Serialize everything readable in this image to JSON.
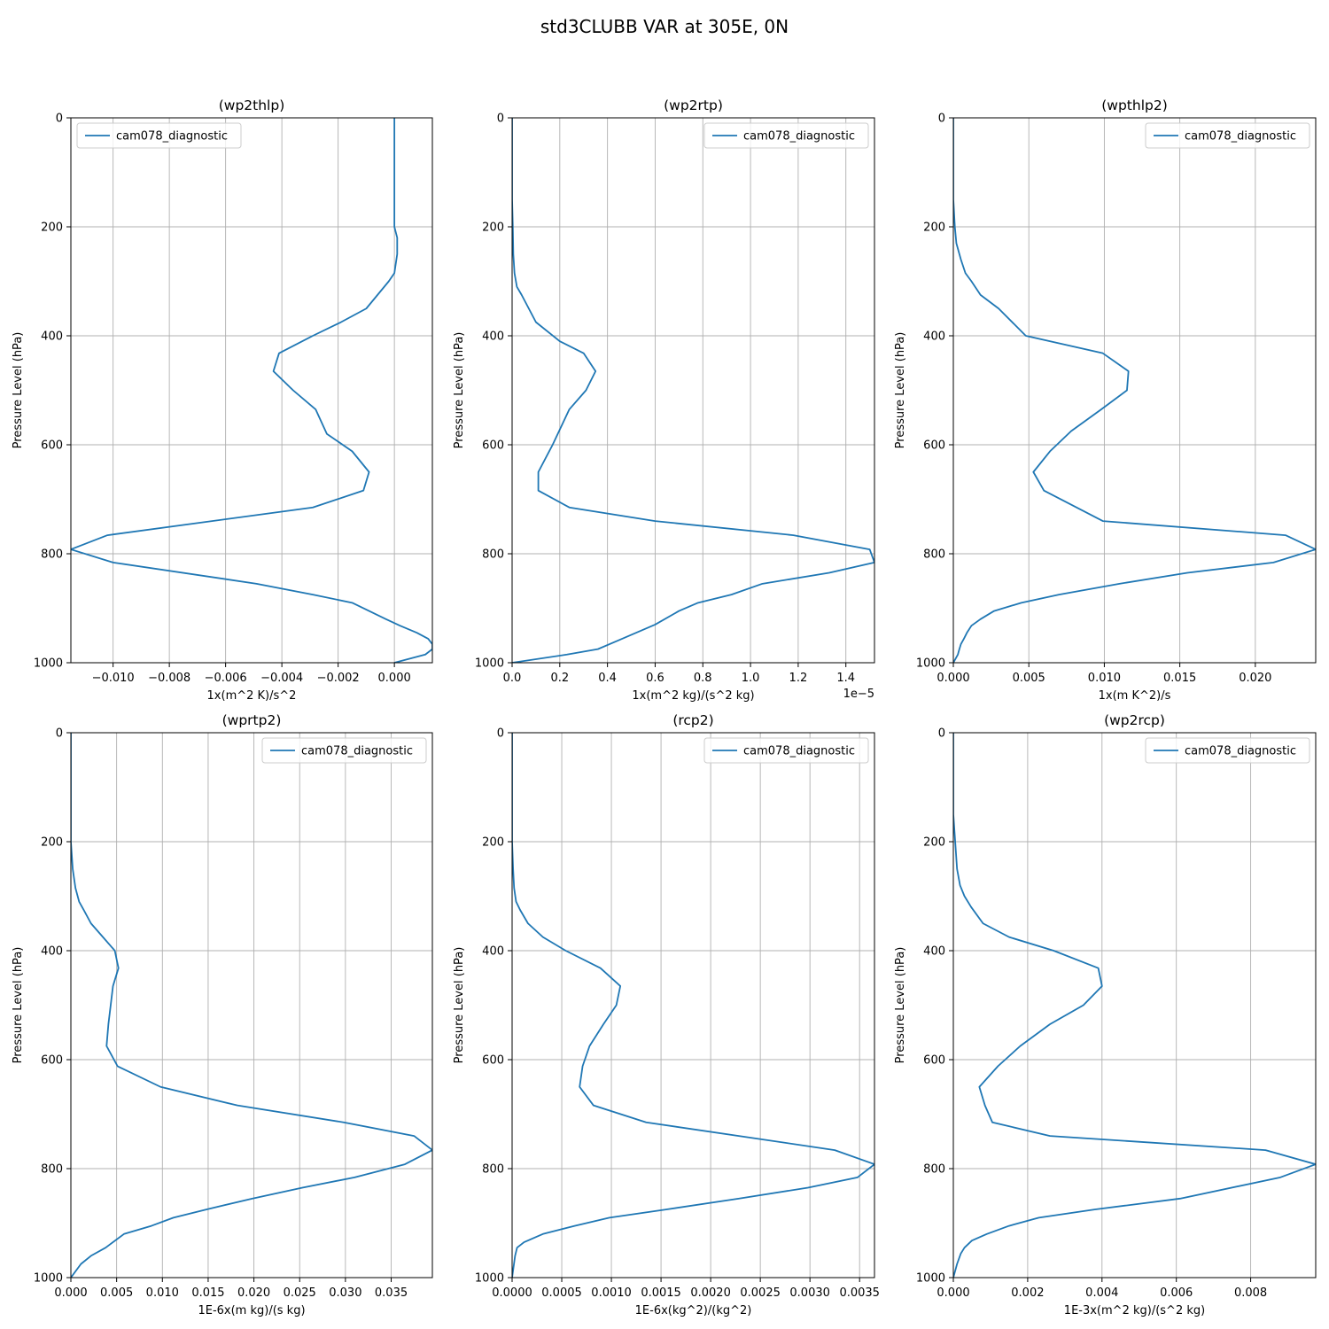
{
  "figure": {
    "suptitle": "std3CLUBB VAR at 305E, 0N",
    "line_color": "#1f77b4",
    "grid_color": "#b0b0b0"
  },
  "chart_data": [
    {
      "type": "line",
      "title": "(wp2thlp)",
      "xlabel": "1x(m^2 K)/s^2",
      "ylabel": "Pressure Level (hPa)",
      "x_offset_text": "",
      "xlim": [
        -0.0115,
        0.00135
      ],
      "xticks": [
        -0.01,
        -0.008,
        -0.006,
        -0.004,
        -0.002,
        0.0
      ],
      "xtick_labels": [
        "−0.010",
        "−0.008",
        "−0.006",
        "−0.004",
        "−0.002",
        "0.000"
      ],
      "ylim": [
        1000,
        0
      ],
      "yticks": [
        0,
        200,
        400,
        600,
        800,
        1000
      ],
      "ytick_labels": [
        "0",
        "200",
        "400",
        "600",
        "800",
        "1000"
      ],
      "grid": true,
      "legend": "upper-left",
      "series": [
        {
          "name": "cam078_diagnostic",
          "x": [
            0.0,
            0.0,
            0.0,
            0.0,
            0.0,
            0.0001,
            0.0001,
            0.0,
            -0.0002,
            -0.0006,
            -0.001,
            -0.0019,
            -0.0029,
            -0.0041,
            -0.0043,
            -0.0036,
            -0.0028,
            -0.0024,
            -0.0015,
            -0.0009,
            -0.0011,
            -0.0029,
            -0.0102,
            -0.0115,
            -0.01,
            -0.0049,
            -0.0029,
            -0.0015,
            -0.0009,
            -0.0003,
            0.0002,
            0.0008,
            0.0012,
            0.00135,
            0.00135,
            0.0011,
            0.0
          ],
          "y": [
            0,
            50,
            100,
            150,
            200,
            220,
            250,
            285,
            300,
            325,
            350,
            375,
            400,
            432,
            465,
            500,
            535,
            580,
            612,
            650,
            684,
            715,
            766,
            792,
            816,
            855,
            875,
            890,
            905,
            920,
            932,
            945,
            956,
            966,
            975,
            985,
            1000
          ]
        }
      ]
    },
    {
      "type": "line",
      "title": "(wp2rtp)",
      "xlabel": "1x(m^2 kg)/(s^2 kg)",
      "ylabel": "Pressure Level (hPa)",
      "x_offset_text": "1e−5",
      "xlim": [
        0,
        1.52
      ],
      "xticks": [
        0.0,
        0.2,
        0.4,
        0.6,
        0.8,
        1.0,
        1.2,
        1.4
      ],
      "xtick_labels": [
        "0.0",
        "0.2",
        "0.4",
        "0.6",
        "0.8",
        "1.0",
        "1.2",
        "1.4"
      ],
      "ylim": [
        1000,
        0
      ],
      "yticks": [
        0,
        200,
        400,
        600,
        800,
        1000
      ],
      "ytick_labels": [
        "0",
        "200",
        "400",
        "600",
        "800",
        "1000"
      ],
      "grid": true,
      "legend": "upper-right",
      "series": [
        {
          "name": "cam078_diagnostic",
          "x": [
            0.0,
            0.0,
            0.003,
            0.005,
            0.01,
            0.02,
            0.04,
            0.07,
            0.1,
            0.2,
            0.3,
            0.35,
            0.31,
            0.24,
            0.17,
            0.11,
            0.11,
            0.24,
            0.6,
            1.18,
            1.5,
            1.52,
            1.33,
            1.05,
            0.92,
            0.78,
            0.7,
            0.6,
            0.52,
            0.44,
            0.36,
            0.23,
            0.0
          ],
          "y": [
            0,
            150,
            200,
            250,
            285,
            310,
            325,
            350,
            375,
            410,
            432,
            465,
            500,
            535,
            600,
            650,
            684,
            715,
            740,
            766,
            792,
            816,
            835,
            855,
            875,
            890,
            905,
            930,
            945,
            960,
            975,
            985,
            1000
          ]
        }
      ]
    },
    {
      "type": "line",
      "title": "(wpthlp2)",
      "xlabel": "1x(m K^2)/s",
      "ylabel": "Pressure Level (hPa)",
      "x_offset_text": "",
      "xlim": [
        0,
        0.024
      ],
      "xticks": [
        0.0,
        0.005,
        0.01,
        0.015,
        0.02
      ],
      "xtick_labels": [
        "0.000",
        "0.005",
        "0.010",
        "0.015",
        "0.020"
      ],
      "ylim": [
        1000,
        0
      ],
      "yticks": [
        0,
        200,
        400,
        600,
        800,
        1000
      ],
      "ytick_labels": [
        "0",
        "200",
        "400",
        "600",
        "800",
        "1000"
      ],
      "grid": true,
      "legend": "upper-right",
      "series": [
        {
          "name": "cam078_diagnostic",
          "x": [
            0.0,
            0.0,
            0.0001,
            0.0002,
            0.0005,
            0.0008,
            0.0012,
            0.0018,
            0.003,
            0.0048,
            0.0099,
            0.0116,
            0.0115,
            0.0098,
            0.0078,
            0.0064,
            0.0053,
            0.006,
            0.0099,
            0.022,
            0.024,
            0.0212,
            0.0155,
            0.011,
            0.007,
            0.0045,
            0.0027,
            0.0018,
            0.0012,
            0.0009,
            0.0007,
            0.0005,
            0.0004,
            0.0003,
            0.0
          ],
          "y": [
            0,
            150,
            200,
            230,
            260,
            285,
            300,
            325,
            350,
            400,
            432,
            465,
            500,
            535,
            575,
            612,
            650,
            684,
            740,
            766,
            792,
            816,
            835,
            855,
            875,
            890,
            905,
            920,
            932,
            945,
            956,
            966,
            975,
            985,
            1000
          ]
        }
      ]
    },
    {
      "type": "line",
      "title": "(wprtp2)",
      "xlabel": "1E-6x(m kg)/(s kg)",
      "ylabel": "Pressure Level (hPa)",
      "x_offset_text": "",
      "xlim": [
        0,
        0.0395
      ],
      "xticks": [
        0.0,
        0.005,
        0.01,
        0.015,
        0.02,
        0.025,
        0.03,
        0.035
      ],
      "xtick_labels": [
        "0.000",
        "0.005",
        "0.010",
        "0.015",
        "0.020",
        "0.025",
        "0.030",
        "0.035"
      ],
      "ylim": [
        1000,
        0
      ],
      "yticks": [
        0,
        200,
        400,
        600,
        800,
        1000
      ],
      "ytick_labels": [
        "0",
        "200",
        "400",
        "600",
        "800",
        "1000"
      ],
      "grid": true,
      "legend": "upper-right",
      "series": [
        {
          "name": "cam078_diagnostic",
          "x": [
            0.0,
            0.0,
            0.0002,
            0.0005,
            0.0009,
            0.0014,
            0.0022,
            0.0035,
            0.0048,
            0.0052,
            0.0046,
            0.0041,
            0.0039,
            0.0051,
            0.0098,
            0.0182,
            0.0298,
            0.0375,
            0.0395,
            0.0365,
            0.031,
            0.0253,
            0.0198,
            0.0148,
            0.0112,
            0.0088,
            0.0058,
            0.0038,
            0.0022,
            0.0011,
            0.0
          ],
          "y": [
            0,
            200,
            250,
            285,
            310,
            325,
            350,
            375,
            400,
            432,
            465,
            535,
            575,
            612,
            650,
            684,
            715,
            740,
            766,
            792,
            816,
            835,
            855,
            875,
            890,
            905,
            920,
            945,
            960,
            975,
            1000
          ]
        }
      ]
    },
    {
      "type": "line",
      "title": "(rcp2)",
      "xlabel": "1E-6x(kg^2)/(kg^2)",
      "ylabel": "Pressure Level (hPa)",
      "x_offset_text": "",
      "xlim": [
        0,
        0.00365
      ],
      "xticks": [
        0.0,
        0.0005,
        0.001,
        0.0015,
        0.002,
        0.0025,
        0.003,
        0.0035
      ],
      "xtick_labels": [
        "0.0000",
        "0.0005",
        "0.0010",
        "0.0015",
        "0.0020",
        "0.0025",
        "0.0030",
        "0.0035"
      ],
      "ylim": [
        1000,
        0
      ],
      "yticks": [
        0,
        200,
        400,
        600,
        800,
        1000
      ],
      "ytick_labels": [
        "0",
        "200",
        "400",
        "600",
        "800",
        "1000"
      ],
      "grid": true,
      "legend": "upper-right",
      "series": [
        {
          "name": "cam078_diagnostic",
          "x": [
            0.0,
            0.0,
            1e-05,
            2e-05,
            4e-05,
            8e-05,
            0.00016,
            0.00031,
            0.00054,
            0.00089,
            0.00109,
            0.00105,
            0.00092,
            0.00078,
            0.00071,
            0.00068,
            0.00082,
            0.00135,
            0.00325,
            0.00365,
            0.00348,
            0.00298,
            0.00228,
            0.00155,
            0.00098,
            0.00063,
            0.00031,
            0.00012,
            5e-05,
            3e-05,
            0.0
          ],
          "y": [
            0,
            200,
            250,
            285,
            310,
            325,
            350,
            375,
            400,
            432,
            465,
            500,
            535,
            575,
            612,
            650,
            684,
            715,
            766,
            792,
            816,
            835,
            855,
            875,
            890,
            905,
            920,
            935,
            945,
            960,
            1000
          ]
        }
      ]
    },
    {
      "type": "line",
      "title": "(wp2rcp)",
      "xlabel": "1E-3x(m^2 kg)/(s^2 kg)",
      "ylabel": "Pressure Level (hPa)",
      "x_offset_text": "",
      "xlim": [
        0,
        0.00975
      ],
      "xticks": [
        0.0,
        0.002,
        0.004,
        0.006,
        0.008
      ],
      "xtick_labels": [
        "0.000",
        "0.002",
        "0.004",
        "0.006",
        "0.008"
      ],
      "ylim": [
        1000,
        0
      ],
      "yticks": [
        0,
        200,
        400,
        600,
        800,
        1000
      ],
      "ytick_labels": [
        "0",
        "200",
        "400",
        "600",
        "800",
        "1000"
      ],
      "grid": true,
      "legend": "upper-right",
      "series": [
        {
          "name": "cam078_diagnostic",
          "x": [
            0.0,
            0.0,
            5e-05,
            0.0001,
            0.00018,
            0.0003,
            0.00048,
            0.0008,
            0.0015,
            0.0027,
            0.0039,
            0.004,
            0.0035,
            0.0026,
            0.0018,
            0.0012,
            0.0007,
            0.00085,
            0.00105,
            0.0026,
            0.0084,
            0.00975,
            0.0088,
            0.0061,
            0.0038,
            0.0023,
            0.0015,
            0.0009,
            0.0005,
            0.0003,
            0.0002,
            0.0001,
            0.0
          ],
          "y": [
            0,
            150,
            200,
            250,
            280,
            300,
            320,
            350,
            375,
            400,
            432,
            465,
            500,
            535,
            575,
            612,
            650,
            684,
            715,
            740,
            766,
            792,
            816,
            855,
            875,
            890,
            905,
            920,
            932,
            945,
            956,
            975,
            1000
          ]
        }
      ]
    }
  ]
}
